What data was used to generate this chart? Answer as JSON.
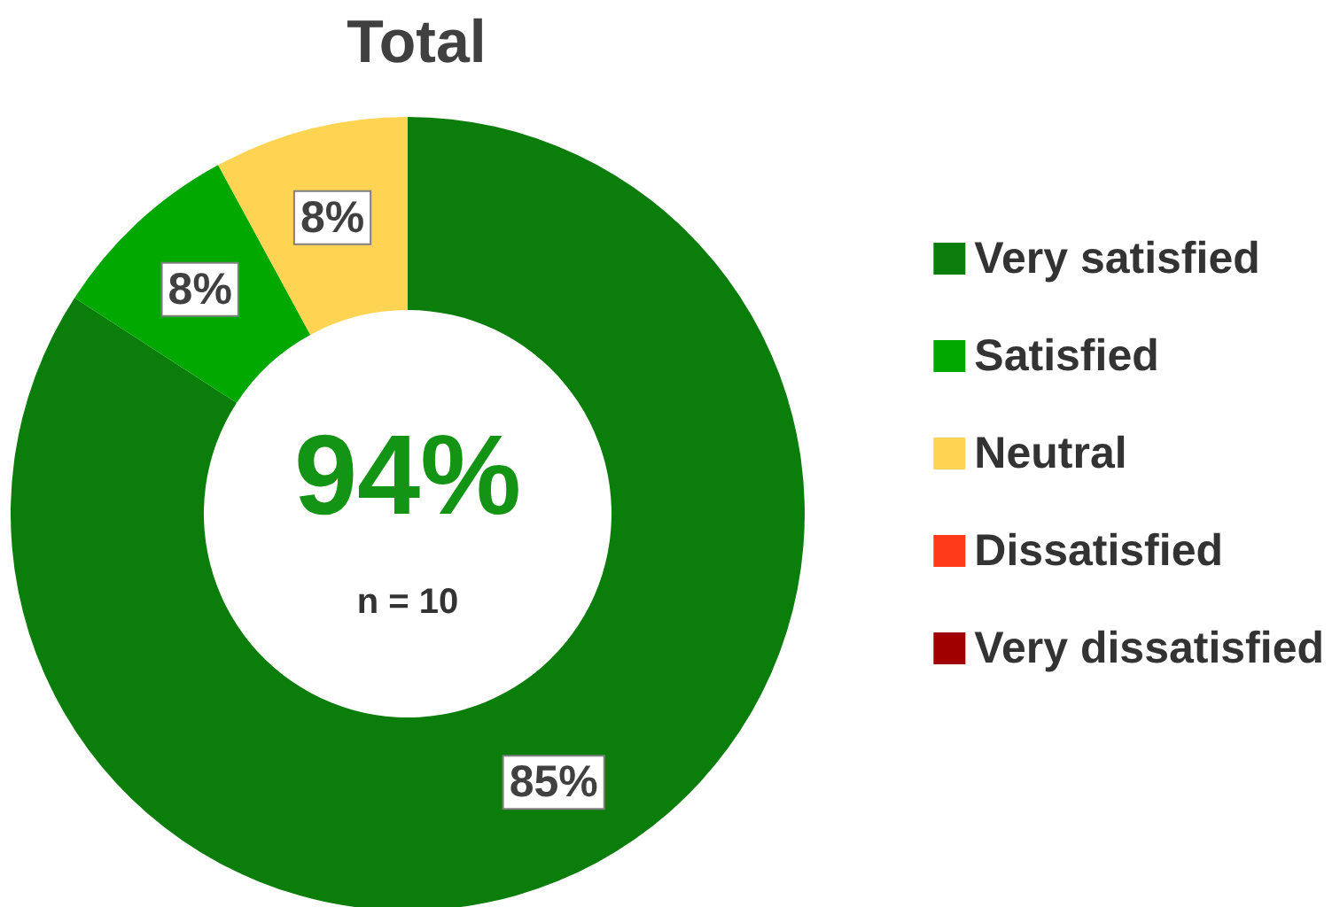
{
  "chart_data": {
    "type": "donut",
    "title": "Total",
    "categories": [
      "Very satisfied",
      "Satisfied",
      "Neutral",
      "Dissatisfied",
      "Very dissatisfied"
    ],
    "values": [
      85,
      8,
      8,
      0,
      0
    ],
    "colors": [
      "#0a7d0a",
      "#00a800",
      "#ffd452",
      "#ff3a1a",
      "#a00000"
    ],
    "value_labels": [
      "85%",
      "8%",
      "8%",
      null,
      null
    ],
    "annotations": [
      "94%",
      "n = 10"
    ],
    "legend": "right"
  }
}
